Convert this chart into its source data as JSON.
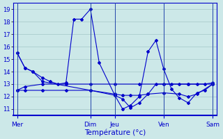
{
  "title": "",
  "xlabel": "Température (°c)",
  "background_color": "#cce8e8",
  "grid_color": "#aacccc",
  "line_color": "#0000cc",
  "ylim": [
    10.5,
    19.5
  ],
  "yticks": [
    11,
    12,
    13,
    14,
    15,
    16,
    17,
    18,
    19
  ],
  "day_labels": [
    "Mer",
    "Dim",
    "Jeu",
    "Ven",
    "Sam"
  ],
  "day_positions": [
    0.0,
    0.375,
    0.5,
    0.75,
    1.0
  ],
  "figsize": [
    3.2,
    2.0
  ],
  "dpi": 100,
  "line1_x": [
    0.0,
    0.04,
    0.08,
    0.13,
    0.17,
    0.21,
    0.25,
    0.29,
    0.33,
    0.375,
    0.42,
    0.5,
    0.54,
    0.58,
    0.625,
    0.67,
    0.71,
    0.75,
    0.79,
    0.83,
    0.875,
    0.92,
    0.96,
    1.0
  ],
  "line1_y": [
    15.5,
    14.3,
    14.0,
    13.5,
    13.2,
    13.0,
    13.1,
    18.2,
    18.2,
    19.0,
    14.7,
    12.1,
    11.8,
    11.1,
    11.5,
    12.2,
    13.0,
    13.0,
    13.0,
    13.0,
    13.0,
    13.0,
    13.0,
    13.1
  ],
  "line2_x": [
    0.0,
    0.04,
    0.08,
    0.13,
    0.375,
    0.5,
    0.54,
    0.58,
    0.625,
    0.67,
    0.71,
    0.75,
    0.79,
    0.83,
    0.875,
    0.92,
    0.96,
    1.0
  ],
  "line2_y": [
    15.5,
    14.3,
    14.0,
    13.2,
    12.5,
    12.1,
    11.0,
    11.3,
    12.0,
    15.6,
    16.5,
    14.2,
    12.6,
    11.9,
    11.5,
    12.3,
    12.5,
    13.0
  ],
  "line3_x": [
    0.0,
    0.04,
    0.13,
    0.25,
    0.375,
    0.5,
    0.54,
    0.58,
    0.625,
    0.67,
    0.75,
    0.83,
    0.875,
    0.92,
    1.0
  ],
  "line3_y": [
    12.5,
    12.5,
    12.5,
    12.5,
    12.5,
    12.2,
    12.1,
    12.1,
    12.1,
    12.2,
    12.3,
    12.2,
    12.0,
    12.2,
    13.0
  ],
  "line4_x": [
    0.0,
    0.04,
    0.13,
    0.25,
    0.375,
    0.5,
    0.625,
    0.75,
    0.875,
    1.0
  ],
  "line4_y": [
    12.5,
    12.8,
    13.0,
    13.0,
    13.0,
    13.0,
    13.0,
    13.0,
    13.0,
    13.0
  ]
}
